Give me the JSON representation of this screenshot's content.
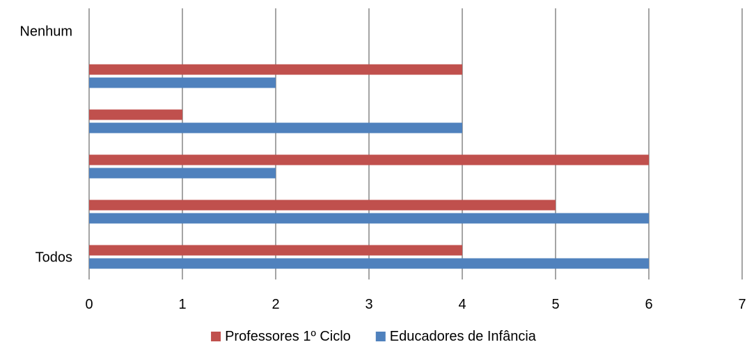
{
  "chart_data": {
    "type": "bar",
    "orientation": "horizontal",
    "title": "",
    "xlabel": "",
    "ylabel": "",
    "categories": [
      "Todos",
      "",
      "",
      "",
      "",
      "Nenhum"
    ],
    "series": [
      {
        "name": "Professores 1º Ciclo",
        "color": "#C0504D",
        "values": [
          4,
          5,
          6,
          1,
          4,
          0
        ]
      },
      {
        "name": "Educadores de Infância",
        "color": "#4F81BD",
        "values": [
          6,
          6,
          2,
          4,
          2,
          0
        ]
      }
    ],
    "xlim": [
      0,
      7
    ],
    "xticks": [
      "0",
      "1",
      "2",
      "3",
      "4",
      "5",
      "6",
      "7"
    ],
    "grid": "vertical",
    "legend": "bottom"
  }
}
